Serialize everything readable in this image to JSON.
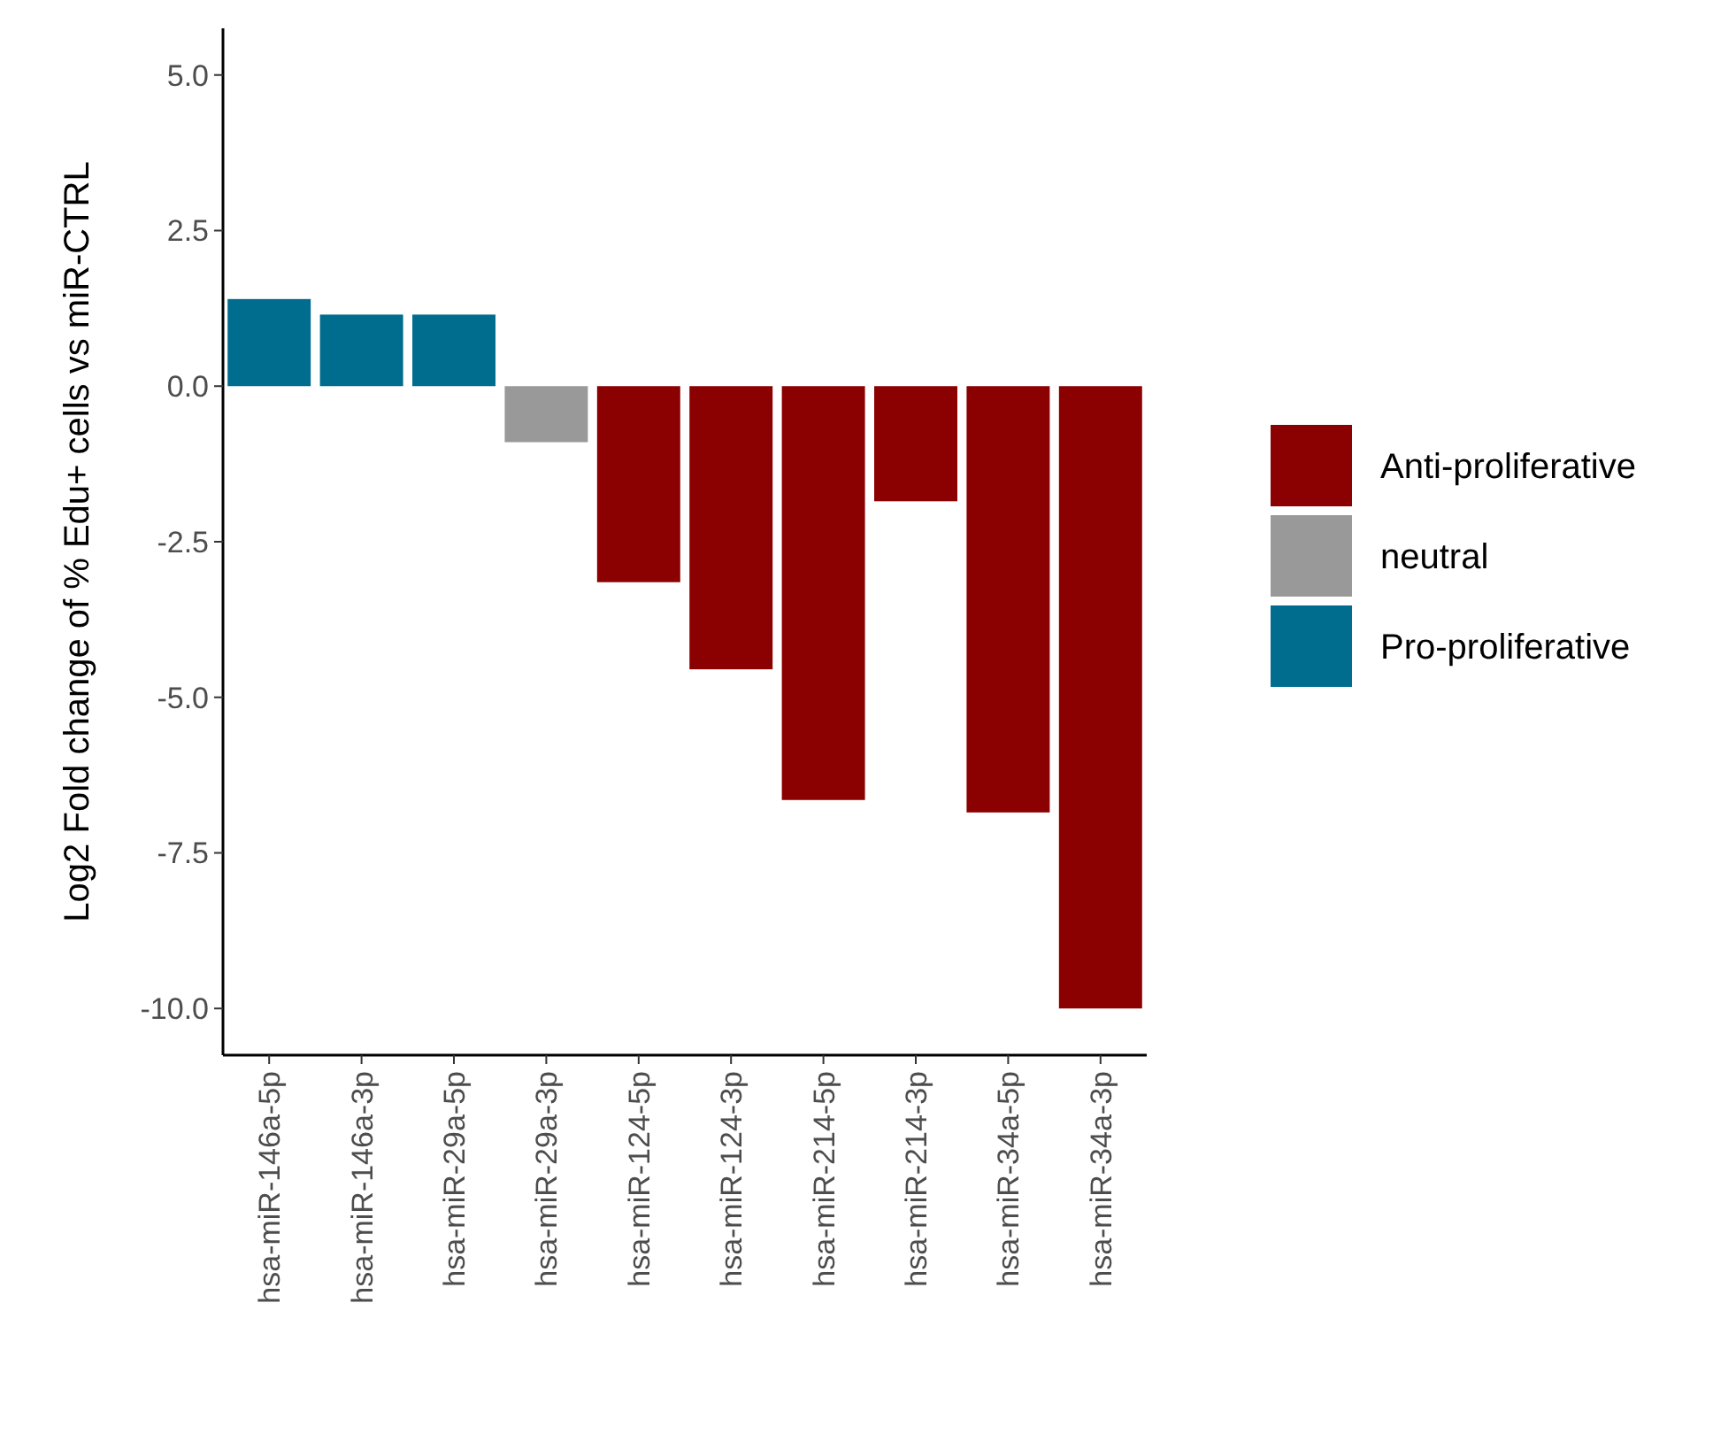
{
  "chart_data": {
    "type": "bar",
    "ylabel": "Log2 Fold change of % Edu+ cells vs miR-CTRL",
    "categories": [
      "hsa-miR-146a-5p",
      "hsa-miR-146a-3p",
      "hsa-miR-29a-5p",
      "hsa-miR-29a-3p",
      "hsa-miR-124-5p",
      "hsa-miR-124-3p",
      "hsa-miR-214-5p",
      "hsa-miR-214-3p",
      "hsa-miR-34a-5p",
      "hsa-miR-34a-3p"
    ],
    "series": [
      {
        "name": "Anti-proliferative",
        "color": "#8b0000",
        "values": [
          null,
          null,
          null,
          null,
          -3.15,
          -4.55,
          -6.65,
          -1.85,
          -6.85,
          -10.0
        ]
      },
      {
        "name": "neutral",
        "color": "#999999",
        "values": [
          null,
          null,
          null,
          -0.9,
          null,
          null,
          null,
          null,
          null,
          null
        ]
      },
      {
        "name": "Pro-proliferative",
        "color": "#006d8f",
        "values": [
          1.4,
          1.15,
          1.15,
          null,
          null,
          null,
          null,
          null,
          null,
          null
        ]
      }
    ],
    "ylim": [
      -10.75,
      5.75
    ],
    "yticks": [
      {
        "value": 5,
        "label": "5.0"
      },
      {
        "value": 2.5,
        "label": "2.5"
      },
      {
        "value": 0,
        "label": "0.0"
      },
      {
        "value": -2.5,
        "label": "-2.5"
      },
      {
        "value": -5,
        "label": "-5.0"
      },
      {
        "value": -7.5,
        "label": "-7.5"
      },
      {
        "value": -10,
        "label": "-10.0"
      }
    ],
    "grid": false,
    "legend": "right"
  }
}
